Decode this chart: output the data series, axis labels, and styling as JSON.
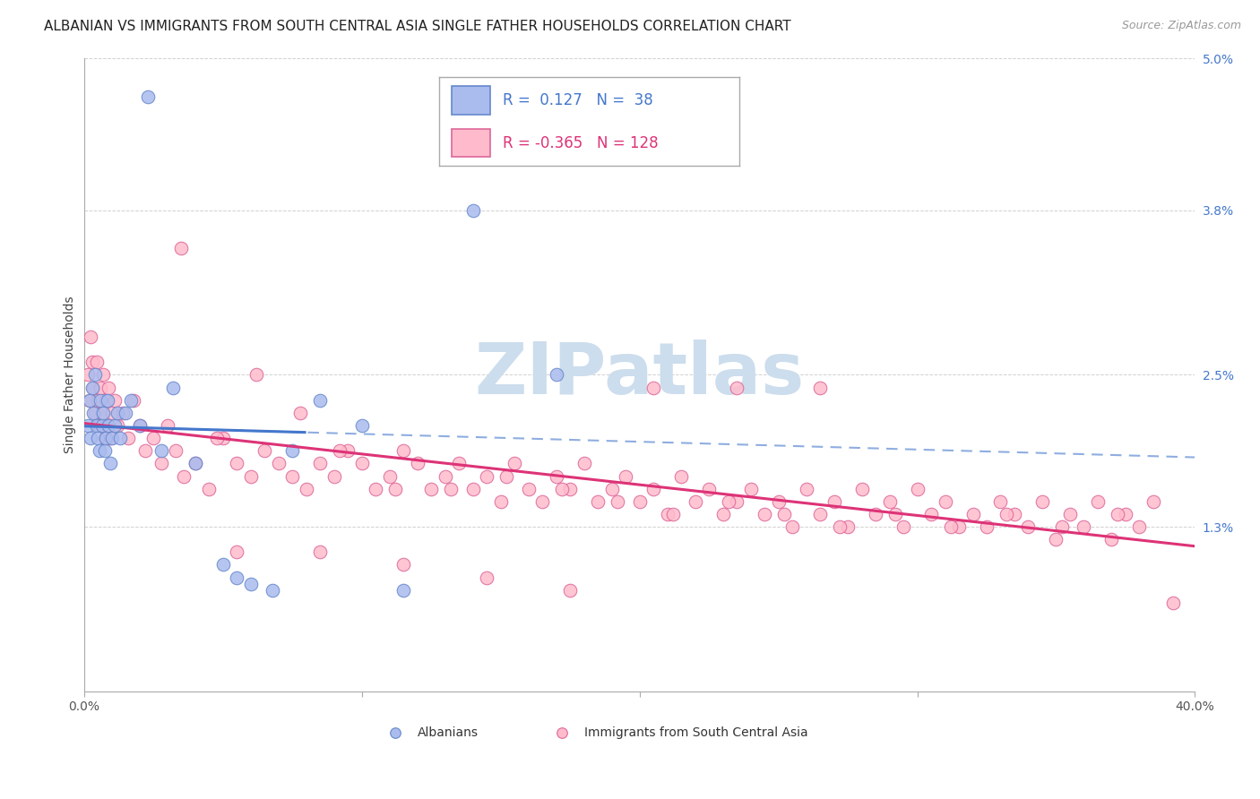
{
  "title": "ALBANIAN VS IMMIGRANTS FROM SOUTH CENTRAL ASIA SINGLE FATHER HOUSEHOLDS CORRELATION CHART",
  "source": "Source: ZipAtlas.com",
  "ylabel": "Single Father Households",
  "xlim": [
    0.0,
    40.0
  ],
  "ylim": [
    0.0,
    5.0
  ],
  "ytick_vals": [
    0.0,
    1.3,
    2.5,
    3.8,
    5.0
  ],
  "ytick_labels": [
    "",
    "1.3%",
    "2.5%",
    "3.8%",
    "5.0%"
  ],
  "xtick_vals": [
    0.0,
    10.0,
    20.0,
    30.0,
    40.0
  ],
  "xtick_labels": [
    "0.0%",
    "",
    "",
    "",
    "40.0%"
  ],
  "watermark": "ZIPatlas",
  "albanian_R": 0.127,
  "albanian_N": 38,
  "immigrant_R": -0.365,
  "immigrant_N": 128,
  "albanian_line_color": "#4477cc",
  "immigrant_line_color": "#dd3377",
  "albanian_scatter_face": "#aabbee",
  "albanian_scatter_edge": "#6688cc",
  "immigrant_scatter_face": "#ffbbcc",
  "immigrant_scatter_edge": "#dd6699",
  "grid_color": "#cccccc",
  "watermark_color": "#ccdded",
  "title_fontsize": 11,
  "axis_label_fontsize": 10,
  "tick_fontsize": 10,
  "legend_fontsize": 12,
  "alb_x": [
    0.15,
    0.2,
    0.25,
    0.3,
    0.35,
    0.4,
    0.45,
    0.5,
    0.55,
    0.6,
    0.65,
    0.7,
    0.75,
    0.8,
    0.85,
    0.9,
    0.95,
    1.0,
    1.1,
    1.2,
    1.3,
    1.5,
    1.7,
    2.0,
    2.3,
    2.8,
    3.2,
    4.0,
    5.0,
    5.5,
    6.0,
    6.8,
    7.5,
    8.5,
    10.0,
    11.5,
    14.0,
    17.0
  ],
  "alb_y": [
    2.1,
    2.3,
    2.0,
    2.4,
    2.2,
    2.5,
    2.1,
    2.0,
    1.9,
    2.3,
    2.1,
    2.2,
    1.9,
    2.0,
    2.3,
    2.1,
    1.8,
    2.0,
    2.1,
    2.2,
    2.0,
    2.2,
    2.3,
    2.1,
    4.7,
    1.9,
    2.4,
    1.8,
    1.0,
    0.9,
    0.85,
    0.8,
    1.9,
    2.3,
    2.1,
    0.8,
    3.8,
    2.5
  ],
  "imm_x": [
    0.15,
    0.2,
    0.25,
    0.3,
    0.35,
    0.4,
    0.45,
    0.5,
    0.55,
    0.6,
    0.65,
    0.7,
    0.75,
    0.8,
    0.85,
    0.9,
    0.95,
    1.0,
    1.1,
    1.2,
    1.4,
    1.6,
    1.8,
    2.0,
    2.2,
    2.5,
    2.8,
    3.0,
    3.3,
    3.6,
    4.0,
    4.5,
    5.0,
    5.5,
    6.0,
    6.5,
    7.0,
    7.5,
    8.0,
    8.5,
    9.0,
    9.5,
    10.0,
    10.5,
    11.0,
    11.5,
    12.0,
    12.5,
    13.0,
    13.5,
    14.0,
    14.5,
    15.0,
    15.5,
    16.0,
    16.5,
    17.0,
    17.5,
    18.0,
    18.5,
    19.0,
    19.5,
    20.0,
    20.5,
    21.0,
    21.5,
    22.0,
    22.5,
    23.0,
    23.5,
    24.0,
    24.5,
    25.0,
    25.5,
    26.0,
    26.5,
    27.0,
    27.5,
    28.0,
    28.5,
    29.0,
    29.5,
    30.0,
    30.5,
    31.0,
    31.5,
    32.0,
    32.5,
    33.0,
    33.5,
    34.0,
    34.5,
    35.0,
    35.5,
    36.0,
    36.5,
    37.0,
    37.5,
    38.0,
    38.5,
    3.5,
    4.8,
    6.2,
    7.8,
    9.2,
    11.2,
    13.2,
    15.2,
    17.2,
    19.2,
    21.2,
    23.2,
    25.2,
    27.2,
    29.2,
    31.2,
    33.2,
    35.2,
    37.2,
    39.2,
    5.5,
    8.5,
    11.5,
    14.5,
    17.5,
    20.5,
    23.5,
    26.5
  ],
  "imm_y": [
    2.5,
    2.3,
    2.8,
    2.6,
    2.4,
    2.2,
    2.6,
    2.3,
    2.1,
    2.4,
    2.2,
    2.5,
    2.0,
    2.3,
    2.1,
    2.4,
    2.0,
    2.2,
    2.3,
    2.1,
    2.2,
    2.0,
    2.3,
    2.1,
    1.9,
    2.0,
    1.8,
    2.1,
    1.9,
    1.7,
    1.8,
    1.6,
    2.0,
    1.8,
    1.7,
    1.9,
    1.8,
    1.7,
    1.6,
    1.8,
    1.7,
    1.9,
    1.8,
    1.6,
    1.7,
    1.9,
    1.8,
    1.6,
    1.7,
    1.8,
    1.6,
    1.7,
    1.5,
    1.8,
    1.6,
    1.5,
    1.7,
    1.6,
    1.8,
    1.5,
    1.6,
    1.7,
    1.5,
    1.6,
    1.4,
    1.7,
    1.5,
    1.6,
    1.4,
    1.5,
    1.6,
    1.4,
    1.5,
    1.3,
    1.6,
    1.4,
    1.5,
    1.3,
    1.6,
    1.4,
    1.5,
    1.3,
    1.6,
    1.4,
    1.5,
    1.3,
    1.4,
    1.3,
    1.5,
    1.4,
    1.3,
    1.5,
    1.2,
    1.4,
    1.3,
    1.5,
    1.2,
    1.4,
    1.3,
    1.5,
    3.5,
    2.0,
    2.5,
    2.2,
    1.9,
    1.6,
    1.6,
    1.7,
    1.6,
    1.5,
    1.4,
    1.5,
    1.4,
    1.3,
    1.4,
    1.3,
    1.4,
    1.3,
    1.4,
    0.7,
    1.1,
    1.1,
    1.0,
    0.9,
    0.8,
    2.4,
    2.4,
    2.4
  ]
}
